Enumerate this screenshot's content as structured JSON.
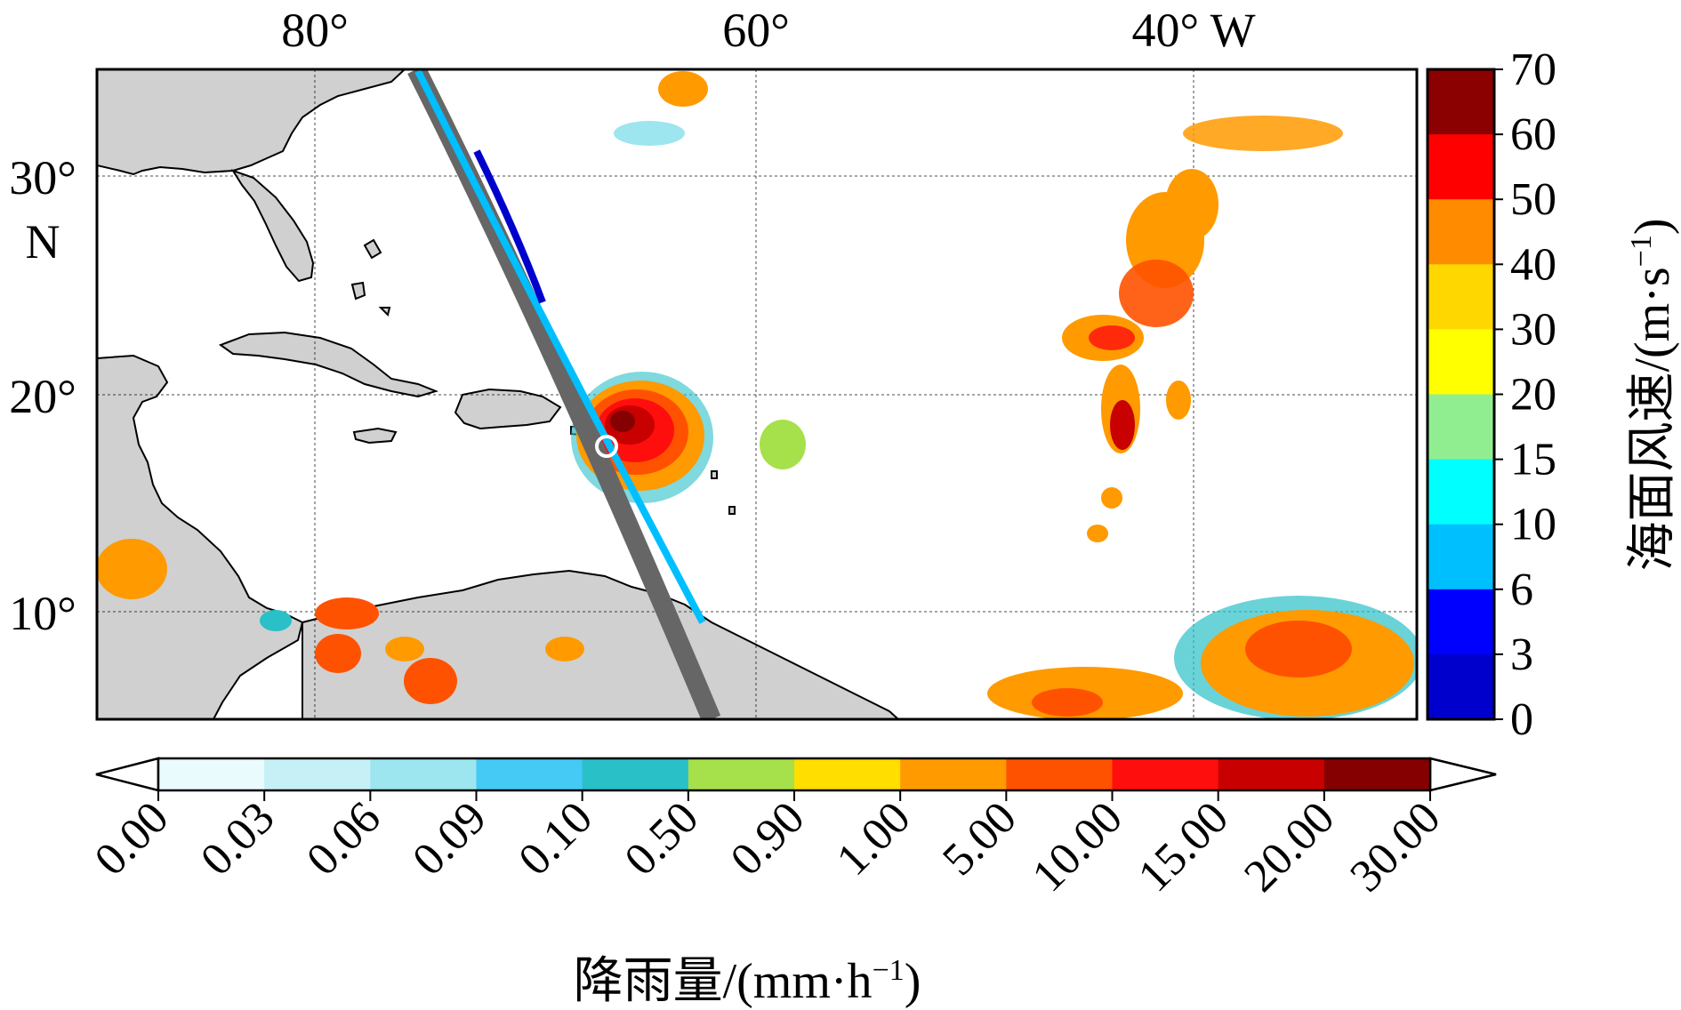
{
  "map": {
    "lon_labels": [
      "80°",
      "60°",
      "40° W"
    ],
    "lat_labels": [
      "30°",
      "N",
      "20°",
      "10°"
    ],
    "land_color": "#d0d0d0",
    "track_color": "#666666",
    "storm_center_marker": "white-ring"
  },
  "wind_colorbar": {
    "title_cjk": "海面风速",
    "title_unit": "/(m·s",
    "title_exp": "−1",
    "title_close": ")",
    "ticks": [
      "70",
      "60",
      "50",
      "40",
      "30",
      "20",
      "15",
      "10",
      "6",
      "3",
      "0"
    ],
    "colors": [
      "#8b0000",
      "#ff0000",
      "#ff8c00",
      "#ffd700",
      "#ffff00",
      "#90ee90",
      "#00ffff",
      "#00bfff",
      "#0000ff",
      "#0000cd"
    ]
  },
  "rain_colorbar": {
    "title_cjk": "降雨量",
    "title_unit": "/(mm·h",
    "title_exp": "−1",
    "title_close": ")",
    "ticks": [
      "0.00",
      "0.03",
      "0.06",
      "0.09",
      "0.10",
      "0.50",
      "0.90",
      "1.00",
      "5.00",
      "10.00",
      "15.00",
      "20.00",
      "30.00"
    ],
    "colors": [
      "#eafbfd",
      "#c6f0f6",
      "#9de5ef",
      "#45c9f5",
      "#29c0c8",
      "#a6e04a",
      "#ffde00",
      "#ff9a00",
      "#ff5200",
      "#ff0e0e",
      "#c80000",
      "#850000"
    ]
  }
}
